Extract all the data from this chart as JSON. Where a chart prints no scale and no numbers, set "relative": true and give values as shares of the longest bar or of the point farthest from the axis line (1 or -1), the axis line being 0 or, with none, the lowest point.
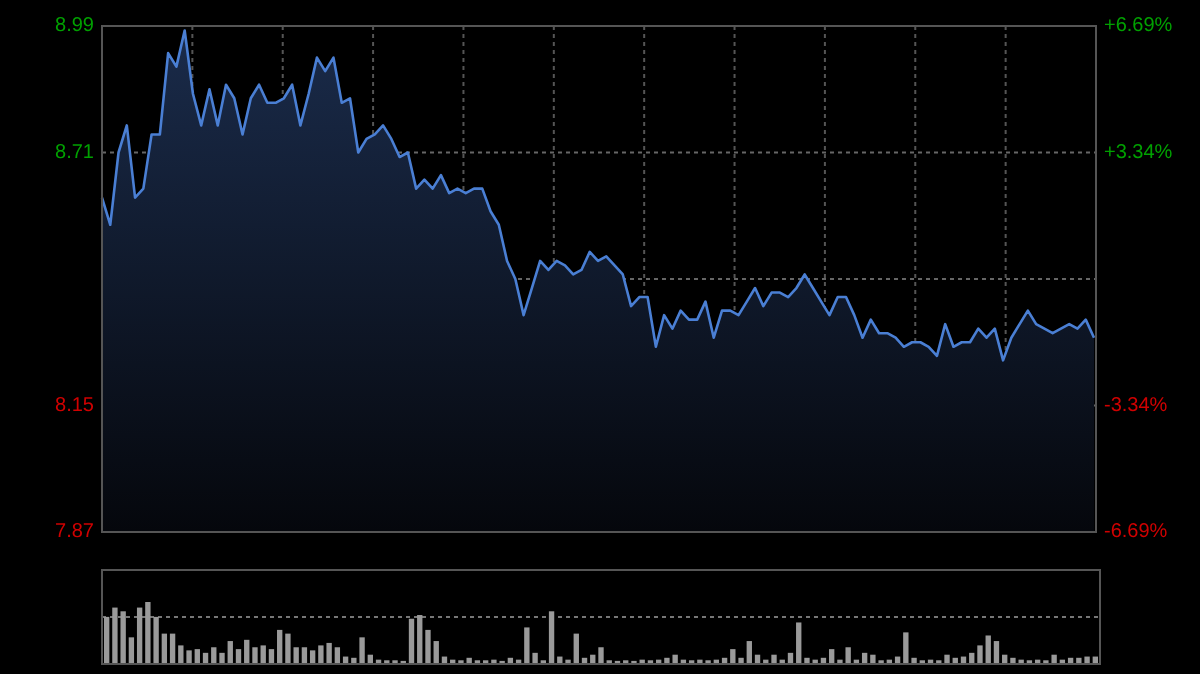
{
  "chart_data": [
    {
      "type": "area",
      "categories": [
        null,
        null,
        null,
        null,
        null,
        null,
        null,
        null,
        null,
        null,
        null,
        null,
        null,
        null,
        null,
        null,
        null,
        null,
        null,
        null,
        null,
        null,
        null,
        null,
        null,
        null,
        null,
        null,
        null,
        null,
        null,
        null,
        null,
        null,
        null,
        null,
        null,
        null,
        null,
        null,
        null,
        null,
        null,
        null,
        null,
        null,
        null,
        null,
        null,
        null,
        null,
        null,
        null,
        null,
        null,
        null,
        null,
        null,
        null,
        null,
        null,
        null,
        null,
        null,
        null,
        null,
        null,
        null,
        null,
        null,
        null,
        null,
        null,
        null,
        null,
        null,
        null,
        null,
        null,
        null,
        null,
        null,
        null,
        null,
        null,
        null,
        null,
        null,
        null,
        null,
        null,
        null,
        null,
        null,
        null,
        null,
        null,
        null,
        null,
        null,
        null,
        null,
        null,
        null,
        null,
        null,
        null,
        null,
        null,
        null,
        null,
        null,
        null,
        null,
        null,
        null,
        null,
        null,
        null,
        null,
        null
      ],
      "series": [
        {
          "color": "#4a7fd4",
          "values": [
            8.61,
            8.55,
            8.71,
            8.77,
            8.61,
            8.63,
            8.75,
            8.75,
            8.93,
            8.9,
            8.98,
            8.84,
            8.77,
            8.85,
            8.77,
            8.86,
            8.83,
            8.75,
            8.83,
            8.86,
            8.82,
            8.82,
            8.83,
            8.86,
            8.77,
            8.84,
            8.92,
            8.89,
            8.92,
            8.82,
            8.83,
            8.71,
            8.74,
            8.75,
            8.77,
            8.74,
            8.7,
            8.71,
            8.63,
            8.65,
            8.63,
            8.66,
            8.62,
            8.63,
            8.62,
            8.63,
            8.63,
            8.58,
            8.55,
            8.47,
            8.43,
            8.35,
            8.41,
            8.47,
            8.45,
            8.47,
            8.46,
            8.44,
            8.45,
            8.49,
            8.47,
            8.48,
            8.46,
            8.44,
            8.37,
            8.39,
            8.39,
            8.28,
            8.35,
            8.32,
            8.36,
            8.34,
            8.34,
            8.38,
            8.3,
            8.36,
            8.36,
            8.35,
            8.38,
            8.41,
            8.37,
            8.4,
            8.4,
            8.39,
            8.41,
            8.44,
            8.41,
            8.38,
            8.35,
            8.39,
            8.39,
            8.35,
            8.3,
            8.34,
            8.31,
            8.31,
            8.3,
            8.28,
            8.29,
            8.29,
            8.28,
            8.26,
            8.33,
            8.28,
            8.29,
            8.29,
            8.32,
            8.3,
            8.32,
            8.25,
            8.3,
            8.33,
            8.36,
            8.33,
            8.32,
            8.31,
            8.32,
            8.33,
            8.32,
            8.34,
            8.3
          ]
        }
      ],
      "ylim": [
        7.87,
        8.99
      ],
      "yticks": [
        7.87,
        8.15,
        {
          "value": 8.43,
          "label": null
        },
        8.71,
        8.99
      ],
      "y2lim": [
        -6.69,
        6.69
      ],
      "y2ticks": [
        {
          "value": -6.69,
          "label": "-6.69%"
        },
        {
          "value": -3.34,
          "label": "-3.34%"
        },
        {
          "value": 3.34,
          "label": "+3.34%"
        },
        {
          "value": 6.69,
          "label": "+6.69%"
        }
      ],
      "grid": true
    },
    {
      "type": "bar",
      "relative": true,
      "color": "#9a9a9a",
      "ref_lines": [
        {
          "axis": "y",
          "value": 0.76,
          "color": "#777777",
          "line_style": "dotted"
        }
      ],
      "categories": [
        null,
        null,
        null,
        null,
        null,
        null,
        null,
        null,
        null,
        null,
        null,
        null,
        null,
        null,
        null,
        null,
        null,
        null,
        null,
        null,
        null,
        null,
        null,
        null,
        null,
        null,
        null,
        null,
        null,
        null,
        null,
        null,
        null,
        null,
        null,
        null,
        null,
        null,
        null,
        null,
        null,
        null,
        null,
        null,
        null,
        null,
        null,
        null,
        null,
        null,
        null,
        null,
        null,
        null,
        null,
        null,
        null,
        null,
        null,
        null,
        null,
        null,
        null,
        null,
        null,
        null,
        null,
        null,
        null,
        null,
        null,
        null,
        null,
        null,
        null,
        null,
        null,
        null,
        null,
        null,
        null,
        null,
        null,
        null,
        null,
        null,
        null,
        null,
        null,
        null,
        null,
        null,
        null,
        null,
        null,
        null,
        null,
        null,
        null,
        null,
        null,
        null,
        null,
        null,
        null,
        null,
        null,
        null,
        null,
        null,
        null,
        null,
        null,
        null,
        null,
        null,
        null,
        null,
        null,
        null,
        null
      ],
      "values": [
        0.76,
        0.91,
        0.85,
        0.43,
        0.91,
        1,
        0.76,
        0.49,
        0.49,
        0.3,
        0.22,
        0.24,
        0.18,
        0.27,
        0.18,
        0.37,
        0.24,
        0.39,
        0.27,
        0.3,
        0.24,
        0.55,
        0.49,
        0.27,
        0.27,
        0.22,
        0.3,
        0.34,
        0.27,
        0.12,
        0.1,
        0.43,
        0.15,
        0.07,
        0.06,
        0.06,
        0.05,
        0.73,
        0.79,
        0.55,
        0.37,
        0.12,
        0.07,
        0.06,
        0.1,
        0.06,
        0.06,
        0.07,
        0.05,
        0.1,
        0.07,
        0.59,
        0.18,
        0.06,
        0.85,
        0.12,
        0.07,
        0.49,
        0.1,
        0.15,
        0.27,
        0.06,
        0.05,
        0.06,
        0.05,
        0.07,
        0.06,
        0.07,
        0.1,
        0.15,
        0.07,
        0.06,
        0.07,
        0.06,
        0.07,
        0.1,
        0.24,
        0.1,
        0.37,
        0.15,
        0.07,
        0.15,
        0.07,
        0.18,
        0.67,
        0.1,
        0.07,
        0.1,
        0.24,
        0.07,
        0.27,
        0.07,
        0.18,
        0.15,
        0.06,
        0.07,
        0.12,
        0.51,
        0.1,
        0.06,
        0.07,
        0.06,
        0.15,
        0.1,
        0.12,
        0.18,
        0.3,
        0.46,
        0.37,
        0.15,
        0.1,
        0.07,
        0.06,
        0.07,
        0.06,
        0.15,
        0.07,
        0.1,
        0.1,
        0.12,
        0.12
      ]
    }
  ]
}
